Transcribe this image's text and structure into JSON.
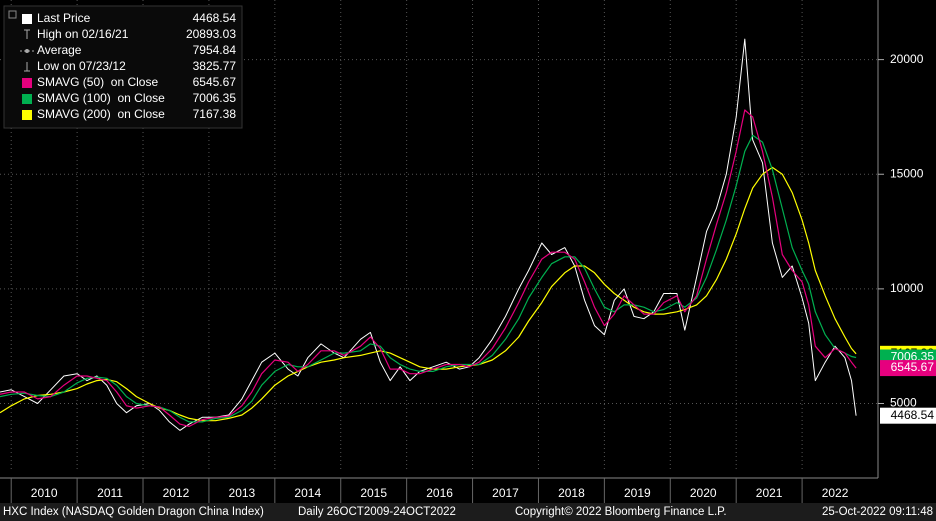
{
  "chart_data": {
    "type": "line",
    "x": [
      2009.83,
      2010.0,
      2010.2,
      2010.4,
      2010.6,
      2010.8,
      2011.0,
      2011.15,
      2011.3,
      2011.45,
      2011.6,
      2011.75,
      2011.9,
      2012.1,
      2012.25,
      2012.4,
      2012.56,
      2012.7,
      2012.9,
      2013.1,
      2013.3,
      2013.5,
      2013.65,
      2013.8,
      2014.0,
      2014.2,
      2014.35,
      2014.5,
      2014.7,
      2014.9,
      2015.05,
      2015.3,
      2015.45,
      2015.6,
      2015.75,
      2015.9,
      2016.05,
      2016.2,
      2016.4,
      2016.6,
      2016.8,
      2016.95,
      2017.1,
      2017.3,
      2017.5,
      2017.7,
      2017.85,
      2018.05,
      2018.2,
      2018.4,
      2018.55,
      2018.7,
      2018.85,
      2019.0,
      2019.15,
      2019.3,
      2019.45,
      2019.6,
      2019.75,
      2019.9,
      2020.1,
      2020.22,
      2020.4,
      2020.55,
      2020.7,
      2020.85,
      2021.0,
      2021.13,
      2021.25,
      2021.4,
      2021.55,
      2021.7,
      2021.85,
      2022.0,
      2022.1,
      2022.2,
      2022.35,
      2022.5,
      2022.65,
      2022.75,
      2022.82
    ],
    "series": [
      {
        "name": "Last Price",
        "color": "#ffffff",
        "label_text_color": "#000000",
        "values": [
          5500,
          5600,
          5300,
          5000,
          5600,
          6200,
          6300,
          6000,
          6200,
          5800,
          5000,
          4600,
          4900,
          5000,
          4700,
          4200,
          3825.77,
          4100,
          4400,
          4400,
          4500,
          5200,
          6000,
          6800,
          7200,
          6500,
          6200,
          7000,
          7600,
          7200,
          7000,
          7800,
          8100,
          6800,
          6000,
          6600,
          6000,
          6400,
          6600,
          6800,
          6500,
          6600,
          7000,
          7800,
          8800,
          10000,
          10800,
          12000,
          11500,
          11800,
          11000,
          9500,
          8400,
          8000,
          9500,
          10000,
          8800,
          8700,
          9000,
          9800,
          9800,
          8200,
          10500,
          12500,
          13500,
          15000,
          17500,
          20893.03,
          16500,
          15500,
          12000,
          10500,
          11000,
          9600,
          8500,
          6000,
          6800,
          7500,
          7000,
          6000,
          4468.54
        ]
      },
      {
        "name": "SMAVG (50)  on Close",
        "color": "#e6007e",
        "label_text_color": "#ffffff",
        "values": [
          5400,
          5500,
          5500,
          5200,
          5300,
          5800,
          6200,
          6200,
          6100,
          6000,
          5500,
          4900,
          4800,
          4900,
          4850,
          4500,
          4100,
          4000,
          4300,
          4400,
          4450,
          4900,
          5500,
          6300,
          6900,
          6800,
          6400,
          6700,
          7300,
          7300,
          7100,
          7500,
          7900,
          7400,
          6500,
          6500,
          6300,
          6300,
          6500,
          6700,
          6700,
          6600,
          6800,
          7400,
          8300,
          9400,
          10300,
          11300,
          11600,
          11600,
          11300,
          10300,
          9200,
          8400,
          8900,
          9700,
          9300,
          8900,
          8900,
          9400,
          9700,
          9000,
          9700,
          11300,
          12800,
          14200,
          16000,
          17800,
          17500,
          16000,
          14000,
          11500,
          10800,
          10300,
          9300,
          7500,
          7000,
          7400,
          7200,
          6800,
          6545.67
        ]
      },
      {
        "name": "SMAVG (100)  on Close",
        "color": "#00b050",
        "label_text_color": "#ffffff",
        "values": [
          5300,
          5400,
          5450,
          5350,
          5300,
          5500,
          5900,
          6100,
          6150,
          6100,
          5800,
          5300,
          5000,
          4900,
          4850,
          4700,
          4400,
          4200,
          4200,
          4350,
          4400,
          4700,
          5100,
          5800,
          6400,
          6700,
          6600,
          6600,
          6900,
          7200,
          7200,
          7300,
          7600,
          7500,
          7000,
          6700,
          6500,
          6400,
          6400,
          6600,
          6700,
          6700,
          6700,
          7100,
          7800,
          8700,
          9600,
          10500,
          11100,
          11400,
          11400,
          10900,
          10000,
          9200,
          9000,
          9300,
          9300,
          9200,
          9000,
          9100,
          9400,
          9200,
          9600,
          10500,
          11700,
          13000,
          14500,
          16000,
          16700,
          16400,
          15200,
          13500,
          11800,
          10800,
          10200,
          9000,
          8000,
          7400,
          7200,
          7050,
          7006.35
        ]
      },
      {
        "name": "SMAVG (200)  on Close",
        "color": "#ffff00",
        "label_text_color": "#000000",
        "values": [
          4600,
          4900,
          5200,
          5350,
          5400,
          5500,
          5650,
          5850,
          6000,
          6050,
          5950,
          5650,
          5300,
          5000,
          4800,
          4700,
          4500,
          4350,
          4250,
          4250,
          4350,
          4500,
          4800,
          5200,
          5800,
          6200,
          6400,
          6600,
          6800,
          6900,
          7000,
          7100,
          7200,
          7300,
          7200,
          7000,
          6800,
          6600,
          6500,
          6500,
          6600,
          6650,
          6700,
          6900,
          7300,
          7900,
          8600,
          9400,
          10100,
          10700,
          11000,
          11000,
          10700,
          10200,
          9800,
          9500,
          9200,
          9000,
          8900,
          8900,
          9000,
          9100,
          9300,
          9700,
          10400,
          11300,
          12400,
          13500,
          14400,
          15000,
          15300,
          15000,
          14200,
          13000,
          12000,
          10800,
          9700,
          8700,
          7900,
          7400,
          7167.38
        ]
      }
    ],
    "stats": [
      {
        "label": "High on 02/16/21",
        "value": 20893.03
      },
      {
        "label": "Average",
        "value": 7954.84
      },
      {
        "label": "Low on 07/23/12",
        "value": 3825.77
      }
    ],
    "xlim": [
      2009.83,
      2023.0
    ],
    "xticks": [
      2010,
      2011,
      2012,
      2013,
      2014,
      2015,
      2016,
      2017,
      2018,
      2019,
      2020,
      2021,
      2022
    ],
    "ylim": [
      2100,
      22600
    ],
    "yticks": [
      5000,
      10000,
      15000,
      20000
    ],
    "grid": true,
    "footer": {
      "ticker": "HXC Index (NASDAQ Golden Dragon China Index)",
      "range": "Daily 26OCT2009-24OCT2022",
      "copyright": "Copyright© 2022 Bloomberg Finance L.P.",
      "timestamp": "25-Oct-2022 09:11:48"
    }
  }
}
